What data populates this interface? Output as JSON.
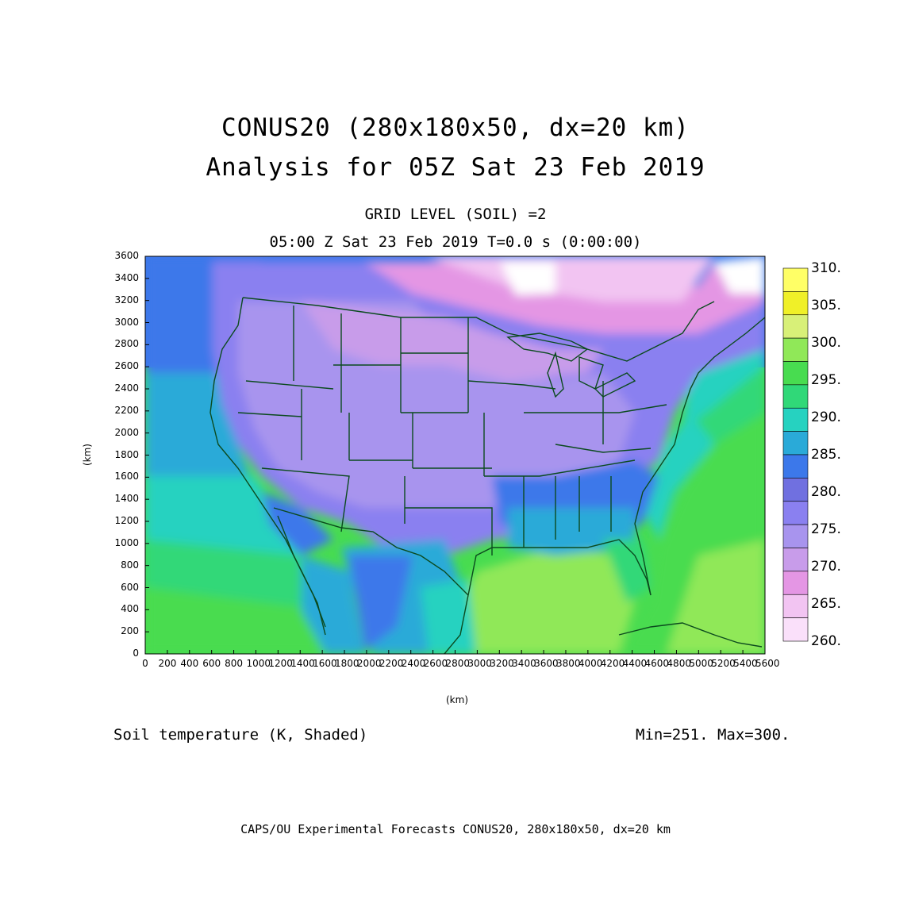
{
  "title": {
    "line1": "CONUS20 (280x180x50, dx=20 km)",
    "line2": "Analysis for 05Z Sat 23 Feb 2019"
  },
  "subtitle": {
    "line1": "GRID LEVEL (SOIL) =2",
    "line2": "05:00 Z Sat 23 Feb 2019    T=0.0 s (0:00:00)"
  },
  "axes": {
    "x_label": "(km)",
    "y_label": "(km)",
    "x_ticks": [
      "0",
      "200",
      "400",
      "600",
      "800",
      "1000",
      "1200",
      "1400",
      "1600",
      "1800",
      "2000",
      "2200",
      "2400",
      "2600",
      "2800",
      "3000",
      "3200",
      "3400",
      "3600",
      "3800",
      "4000",
      "4200",
      "4400",
      "4600",
      "4800",
      "5000",
      "5200",
      "5400",
      "5600"
    ],
    "y_ticks": [
      "0",
      "200",
      "400",
      "600",
      "800",
      "1000",
      "1200",
      "1400",
      "1600",
      "1800",
      "2000",
      "2200",
      "2400",
      "2600",
      "2800",
      "3000",
      "3200",
      "3400",
      "3600"
    ],
    "x_range": [
      0,
      5600
    ],
    "y_range": [
      0,
      3600
    ]
  },
  "colorbar": {
    "labels": [
      "310.",
      "305.",
      "300.",
      "295.",
      "290.",
      "285.",
      "280.",
      "275.",
      "270.",
      "265.",
      "260."
    ],
    "colors": [
      "#ffff66",
      "#f0f028",
      "#d8f078",
      "#90e858",
      "#48dc50",
      "#30d878",
      "#26d2c0",
      "#2aaad8",
      "#3c78ea",
      "#7070e0",
      "#8a80f0",
      "#a894ee",
      "#c89cea",
      "#e496e4",
      "#f2c4f2",
      "#fae0fa"
    ]
  },
  "field": {
    "description_label": "Soil temperature (K, Shaded)",
    "minmax_label": "Min=251.  Max=300."
  },
  "footer": "CAPS/OU Experimental Forecasts  CONUS20, 280x180x50, dx=20 km"
}
